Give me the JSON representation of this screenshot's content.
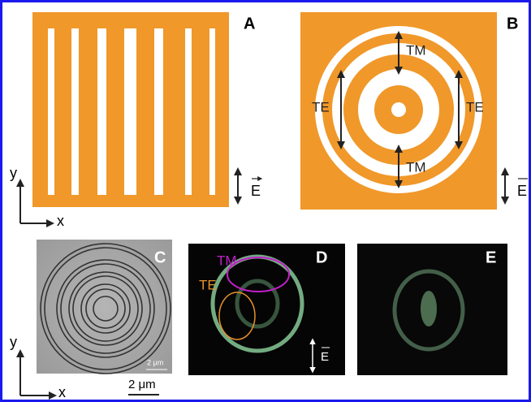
{
  "panels": {
    "A": {
      "label": "A",
      "field_label": "E"
    },
    "B": {
      "label": "B",
      "annotations": [
        "TM",
        "TE",
        "TE",
        "TM"
      ],
      "field_label": "E"
    },
    "C": {
      "label": "C",
      "scale_bar": "2 μm"
    },
    "D": {
      "label": "D",
      "annotations": [
        "TM",
        "TE"
      ],
      "field_label": "E"
    },
    "E": {
      "label": "E"
    }
  },
  "axes_top": {
    "y": "y",
    "x": "x"
  },
  "axes_bottom": {
    "y": "y",
    "x": "x",
    "scale_bar": "2 μm"
  }
}
